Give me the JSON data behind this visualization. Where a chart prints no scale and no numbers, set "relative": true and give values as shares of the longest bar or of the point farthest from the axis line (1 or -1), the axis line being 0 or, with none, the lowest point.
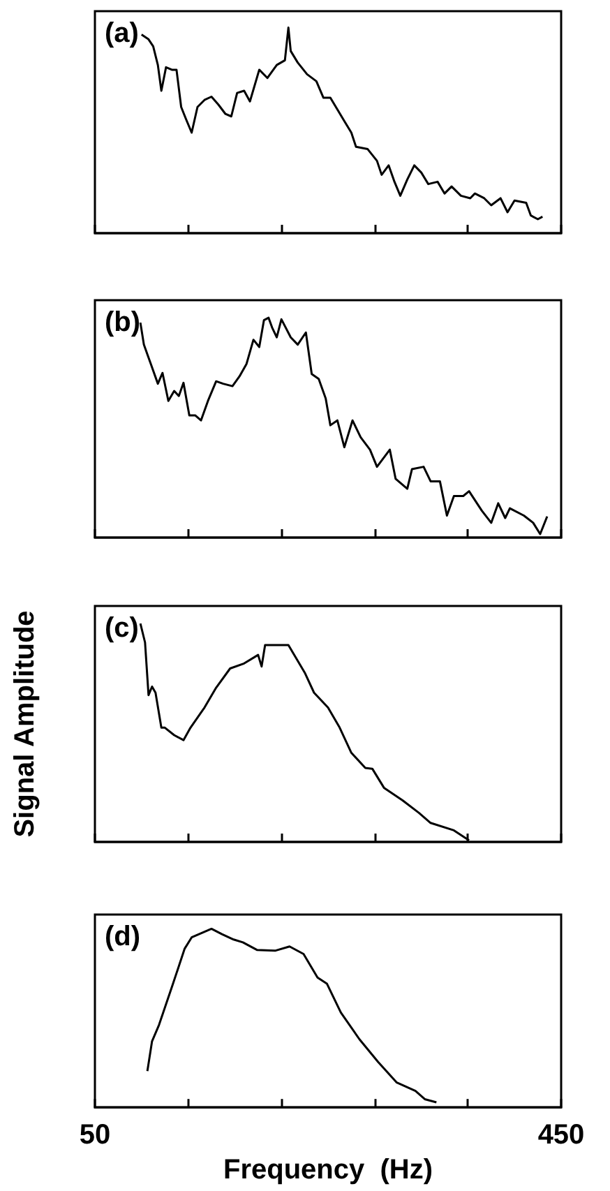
{
  "chart_data": [
    {
      "type": "line",
      "title": "(a)",
      "relative": true,
      "grid": false,
      "tick_labels": false,
      "xlim": [
        50,
        450
      ],
      "xticks": [
        {
          "value": 50,
          "label": null
        },
        {
          "value": 130,
          "label": null
        },
        {
          "value": 210,
          "label": null
        },
        {
          "value": 290,
          "label": null
        },
        {
          "value": 370,
          "label": null
        },
        {
          "value": 450,
          "label": null
        }
      ],
      "series": [
        {
          "color": "#000000",
          "x": [
            90,
            96,
            100,
            104,
            107,
            111,
            116,
            120,
            124,
            128,
            133,
            138,
            144,
            150,
            156,
            162,
            167,
            172,
            178,
            183,
            191,
            198,
            206,
            213,
            216,
            218,
            224,
            232,
            240,
            246,
            252,
            258,
            264,
            270,
            274,
            284,
            292,
            296,
            302,
            307,
            312,
            318,
            324,
            330,
            336,
            344,
            350,
            356,
            364,
            372,
            376,
            384,
            390,
            398,
            404,
            410,
            420,
            424,
            430,
            434
          ],
          "values": [
            0.966,
            0.943,
            0.909,
            0.818,
            0.693,
            0.807,
            0.795,
            0.795,
            0.614,
            0.557,
            0.489,
            0.614,
            0.648,
            0.664,
            0.625,
            0.58,
            0.568,
            0.682,
            0.693,
            0.641,
            0.795,
            0.755,
            0.818,
            0.841,
            1.0,
            0.886,
            0.83,
            0.773,
            0.739,
            0.659,
            0.659,
            0.602,
            0.545,
            0.489,
            0.42,
            0.409,
            0.352,
            0.284,
            0.33,
            0.25,
            0.182,
            0.261,
            0.33,
            0.295,
            0.239,
            0.25,
            0.193,
            0.227,
            0.182,
            0.17,
            0.193,
            0.17,
            0.136,
            0.17,
            0.102,
            0.159,
            0.148,
            0.086,
            0.068,
            0.08
          ]
        }
      ]
    },
    {
      "type": "line",
      "title": "(b)",
      "relative": true,
      "grid": false,
      "tick_labels": false,
      "xlim": [
        50,
        450
      ],
      "xticks": [
        {
          "value": 50,
          "label": null
        },
        {
          "value": 130,
          "label": null
        },
        {
          "value": 210,
          "label": null
        },
        {
          "value": 290,
          "label": null
        },
        {
          "value": 370,
          "label": null
        },
        {
          "value": 450,
          "label": null
        }
      ],
      "series": [
        {
          "color": "#000000",
          "x": [
            89,
            92,
            98,
            104,
            108,
            113,
            118,
            122,
            126,
            131,
            136,
            141,
            147,
            154,
            160,
            168,
            174,
            180,
            186,
            191,
            195,
            199,
            202,
            206,
            210,
            218,
            224,
            231,
            236,
            242,
            248,
            252,
            258,
            264,
            271,
            278,
            286,
            292,
            303,
            308,
            318,
            322,
            332,
            338,
            346,
            352,
            358,
            366,
            371,
            382,
            390,
            396,
            402,
            406,
            418,
            426,
            432,
            438
          ],
          "values": [
            0.978,
            0.878,
            0.789,
            0.7,
            0.749,
            0.622,
            0.667,
            0.644,
            0.704,
            0.556,
            0.556,
            0.533,
            0.622,
            0.711,
            0.7,
            0.689,
            0.733,
            0.789,
            0.9,
            0.867,
            0.989,
            1.0,
            0.956,
            0.911,
            0.993,
            0.911,
            0.878,
            0.933,
            0.744,
            0.722,
            0.633,
            0.511,
            0.533,
            0.411,
            0.533,
            0.456,
            0.4,
            0.322,
            0.4,
            0.267,
            0.222,
            0.311,
            0.322,
            0.256,
            0.256,
            0.1,
            0.189,
            0.189,
            0.211,
            0.122,
            0.067,
            0.156,
            0.089,
            0.133,
            0.1,
            0.067,
            0.016,
            0.096
          ]
        }
      ]
    },
    {
      "type": "line",
      "title": "(c)",
      "ylabel": "Signal Amplitude",
      "relative": true,
      "grid": false,
      "tick_labels": false,
      "xlim": [
        50,
        450
      ],
      "xticks": [
        {
          "value": 50,
          "label": null
        },
        {
          "value": 130,
          "label": null
        },
        {
          "value": 210,
          "label": null
        },
        {
          "value": 290,
          "label": null
        },
        {
          "value": 370,
          "label": null
        },
        {
          "value": 450,
          "label": null
        }
      ],
      "series": [
        {
          "color": "#000000",
          "x": [
            89,
            93,
            96,
            99,
            102,
            107,
            110,
            118,
            126,
            132,
            144,
            154,
            166,
            178,
            190,
            193,
            196,
            216,
            230,
            238,
            250,
            260,
            270,
            282,
            288,
            298,
            314,
            328,
            338,
            358,
            371
          ],
          "values": [
            1.0,
            0.913,
            0.672,
            0.711,
            0.683,
            0.523,
            0.523,
            0.489,
            0.466,
            0.523,
            0.615,
            0.706,
            0.794,
            0.817,
            0.856,
            0.803,
            0.901,
            0.901,
            0.775,
            0.683,
            0.615,
            0.523,
            0.408,
            0.339,
            0.335,
            0.248,
            0.19,
            0.133,
            0.087,
            0.053,
            0.007
          ]
        }
      ]
    },
    {
      "type": "line",
      "title": "(d)",
      "xlabel": "Frequency  (Hz)",
      "relative": true,
      "grid": false,
      "tick_labels": "x",
      "xlim": [
        50,
        450
      ],
      "xticks": [
        {
          "value": 50,
          "label": "50"
        },
        {
          "value": 130,
          "label": null
        },
        {
          "value": 210,
          "label": null
        },
        {
          "value": 290,
          "label": null
        },
        {
          "value": 370,
          "label": null
        },
        {
          "value": 450,
          "label": "450"
        }
      ],
      "series": [
        {
          "color": "#000000",
          "x": [
            95,
            99,
            105,
            117,
            127,
            133,
            141,
            150,
            159,
            169,
            177,
            189,
            205,
            217,
            229,
            241,
            249,
            261,
            277,
            293,
            309,
            325,
            333,
            343
          ],
          "values": [
            0.203,
            0.37,
            0.462,
            0.693,
            0.889,
            0.952,
            0.975,
            1.0,
            0.97,
            0.94,
            0.924,
            0.882,
            0.878,
            0.901,
            0.859,
            0.727,
            0.693,
            0.531,
            0.381,
            0.254,
            0.139,
            0.092,
            0.046,
            0.028
          ]
        }
      ]
    }
  ]
}
